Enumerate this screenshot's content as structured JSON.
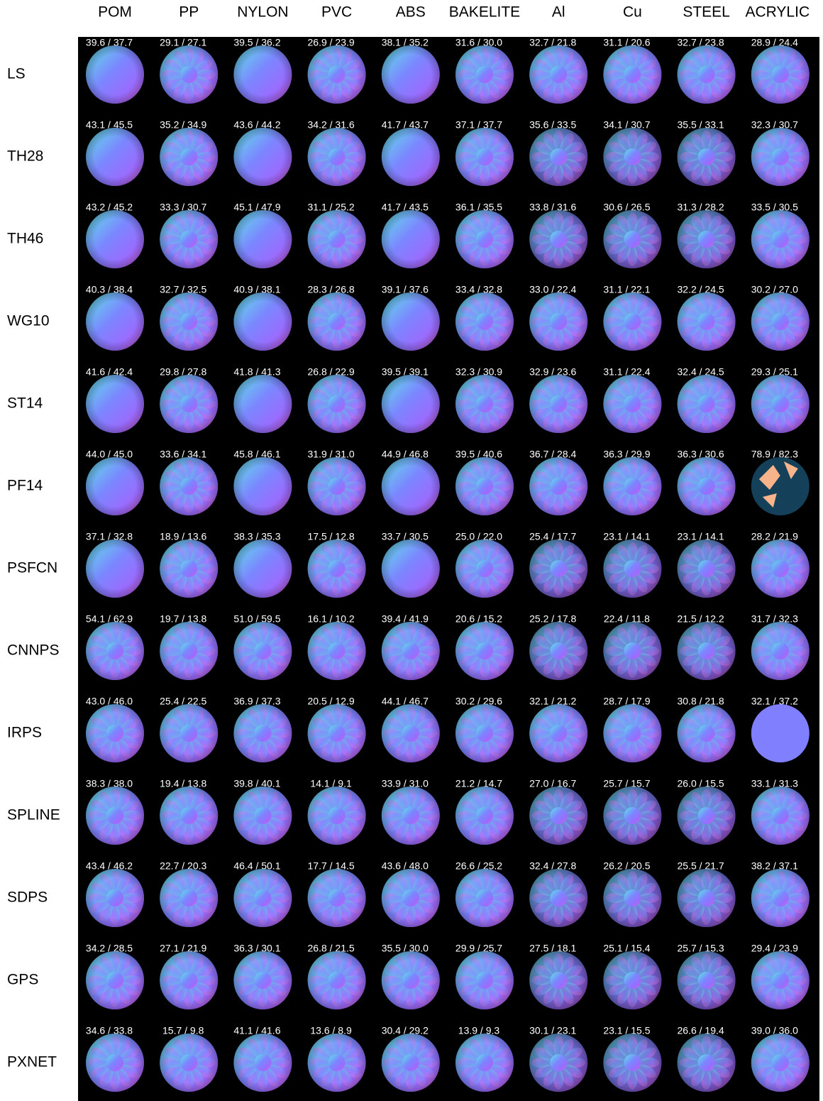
{
  "columns": [
    "POM",
    "PP",
    "NYLON",
    "PVC",
    "ABS",
    "BAKELITE",
    "Al",
    "Cu",
    "STEEL",
    "ACRYLIC"
  ],
  "rows": [
    {
      "name": "LS",
      "cells": [
        "39.6 / 37.7",
        "29.1 / 27.1",
        "39.5 / 36.2",
        "26.9 / 23.9",
        "38.1 / 35.2",
        "31.6 / 30.0",
        "32.7 / 21.8",
        "31.1 / 20.6",
        "32.7 / 23.8",
        "28.9 / 24.4"
      ]
    },
    {
      "name": "TH28",
      "cells": [
        "43.1 / 45.5",
        "35.2 / 34.9",
        "43.6 / 44.2",
        "34.2 / 31.6",
        "41.7 / 43.7",
        "37.1 / 37.7",
        "35.6 / 33.5",
        "34.1 / 30.7",
        "35.5 / 33.1",
        "32.3 / 30.7"
      ]
    },
    {
      "name": "TH46",
      "cells": [
        "43.2 / 45.2",
        "33.3 / 30.7",
        "45.1 / 47.9",
        "31.1 / 25.2",
        "41.7 / 43.5",
        "36.1 / 35.5",
        "33.8 / 31.6",
        "30.6 / 26.5",
        "31.3 / 28.2",
        "33.5 / 30.5"
      ]
    },
    {
      "name": "WG10",
      "cells": [
        "40.3 / 38.4",
        "32.7 / 32.5",
        "40.9 / 38.1",
        "28.3 / 26.8",
        "39.1 / 37.6",
        "33.4 / 32.8",
        "33.0 / 22.4",
        "31.1 / 22.1",
        "32.2 / 24.5",
        "30.2 / 27.0"
      ]
    },
    {
      "name": "ST14",
      "cells": [
        "41.6 / 42.4",
        "29.8 / 27.8",
        "41.8 / 41.3",
        "26.8 / 22.9",
        "39.5 / 39.1",
        "32.3 / 30.9",
        "32.9 / 23.6",
        "31.1 / 22.4",
        "32.4 / 24.5",
        "29.3 / 25.1"
      ]
    },
    {
      "name": "PF14",
      "cells": [
        "44.0 / 45.0",
        "33.6 / 34.1",
        "45.8 / 46.1",
        "31.9 / 31.0",
        "44.9 / 46.8",
        "39.5 / 40.6",
        "36.7 / 28.4",
        "36.3 / 29.9",
        "36.3 / 30.6",
        "78.9 / 82.3"
      ]
    },
    {
      "name": "PSFCN",
      "cells": [
        "37.1 / 32.8",
        "18.9 / 13.6",
        "38.3 / 35.3",
        "17.5 / 12.8",
        "33.7 / 30.5",
        "25.0 / 22.0",
        "25.4 / 17.7",
        "23.1 / 14.1",
        "23.1 / 14.1",
        "28.2 / 21.9"
      ]
    },
    {
      "name": "CNNPS",
      "cells": [
        "54.1 / 62.9",
        "19.7 / 13.8",
        "51.0 / 59.5",
        "16.1 / 10.2",
        "39.4 / 41.9",
        "20.6 / 15.2",
        "25.2 / 17.8",
        "22.4 / 11.8",
        "21.5 / 12.2",
        "31.7 / 32.3"
      ]
    },
    {
      "name": "IRPS",
      "cells": [
        "43.0 / 46.0",
        "25.4 / 22.5",
        "36.9 / 37.3",
        "20.5 / 12.9",
        "44.1 / 46.7",
        "30.2 / 29.6",
        "32.1 / 21.2",
        "28.7 / 17.9",
        "30.8 / 21.8",
        "32.1 / 37.2"
      ]
    },
    {
      "name": "SPLINE",
      "cells": [
        "38.3 / 38.0",
        "19.4 / 13.8",
        "39.8 / 40.1",
        "14.1 / 9.1",
        "33.9 / 31.0",
        "21.2 / 14.7",
        "27.0 / 16.7",
        "25.7 / 15.7",
        "26.0 / 15.5",
        "33.1 / 31.3"
      ]
    },
    {
      "name": "SDPS",
      "cells": [
        "43.4 / 46.2",
        "22.7 / 20.3",
        "46.4 / 50.1",
        "17.7 / 14.5",
        "43.6 / 48.0",
        "26.6 / 25.2",
        "32.4 / 27.8",
        "26.2 / 20.5",
        "25.5 / 21.7",
        "38.2 / 37.1"
      ]
    },
    {
      "name": "GPS",
      "cells": [
        "34.2 / 28.5",
        "27.1 / 21.9",
        "36.3 / 30.1",
        "26.8 / 21.5",
        "35.5 / 30.0",
        "29.9 / 25.7",
        "27.5 / 18.1",
        "25.1 / 15.4",
        "25.7 / 15.3",
        "29.4 / 23.9"
      ]
    },
    {
      "name": "PXNET",
      "cells": [
        "34.6 / 33.8",
        "15.7 / 9.8",
        "41.1 / 41.6",
        "13.6 / 8.9",
        "30.4 / 29.2",
        "13.9 / 9.3",
        "30.1 / 23.1",
        "23.1 / 15.5",
        "26.6 / 19.4",
        "39.0 / 36.0"
      ]
    }
  ]
}
